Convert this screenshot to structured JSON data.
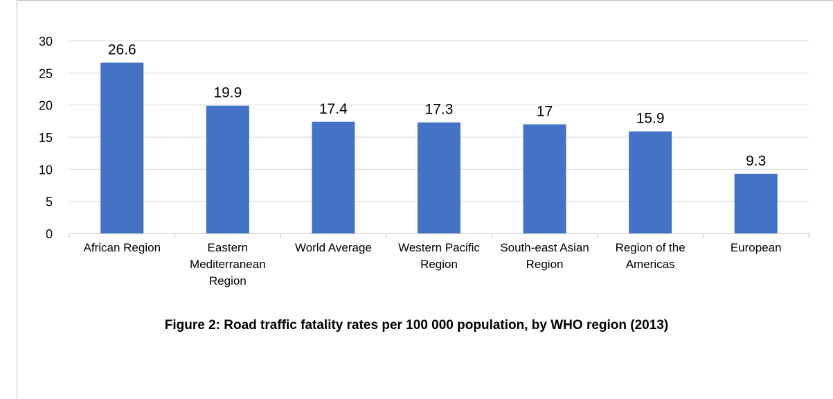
{
  "chart_data": {
    "type": "bar",
    "categories": [
      [
        "African Region"
      ],
      [
        "Eastern",
        "Mediterranean",
        "Region"
      ],
      [
        "World Average"
      ],
      [
        "Western Pacific",
        "Region"
      ],
      [
        "South-east Asian",
        "Region"
      ],
      [
        "Region of the",
        "Americas"
      ],
      [
        "European"
      ]
    ],
    "values": [
      26.6,
      19.9,
      17.4,
      17.3,
      17,
      15.9,
      9.3
    ],
    "data_labels": [
      "26.6",
      "19.9",
      "17.4",
      "17.3",
      "17",
      "15.9",
      "9.3"
    ],
    "yticks": [
      0,
      5,
      10,
      15,
      20,
      25,
      30
    ],
    "ylim": [
      0,
      30
    ],
    "grid": true,
    "bar_color": "#4472c4",
    "grid_color": "#d9d9d9"
  },
  "caption": "Figure 2: Road traffic fatality rates per 100 000 population, by WHO region (2013)"
}
